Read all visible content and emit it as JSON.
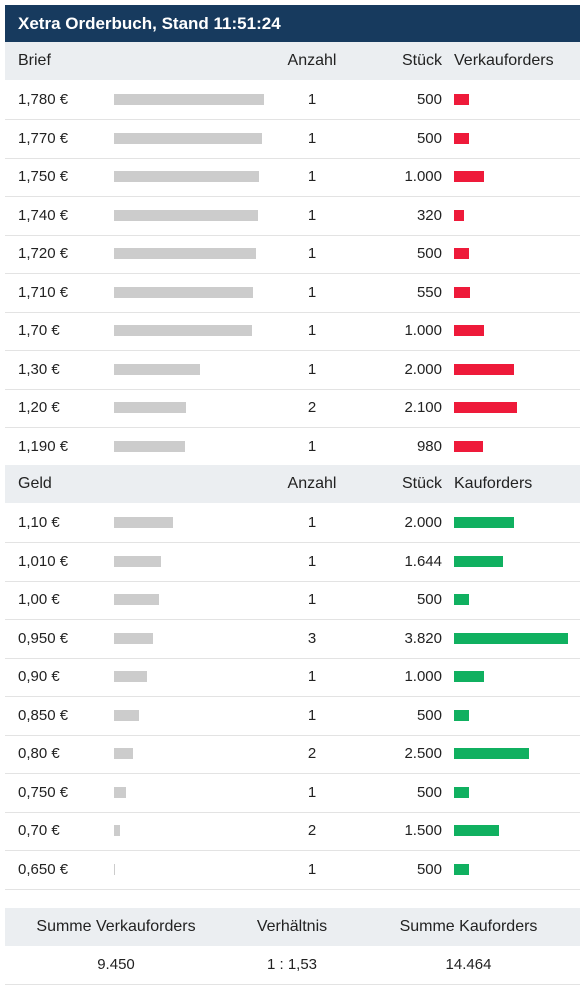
{
  "title": "Xetra Orderbuch, Stand 11:51:24",
  "colors": {
    "title_bg": "#173a5e",
    "sell": "#ee1a3a",
    "buy": "#10b060",
    "volume_bar": "#cccccc",
    "header_bg": "#ebeef1"
  },
  "ask_header": {
    "price": "Brief",
    "count": "Anzahl",
    "qty": "Stück",
    "orders": "Verkauforders"
  },
  "asks": [
    {
      "price": "1,780 €",
      "count": "1",
      "qty": "500",
      "qty_num": 500,
      "volume_share": 1.0
    },
    {
      "price": "1,770 €",
      "count": "1",
      "qty": "500",
      "qty_num": 500,
      "volume_share": 0.987
    },
    {
      "price": "1,750 €",
      "count": "1",
      "qty": "1.000",
      "qty_num": 1000,
      "volume_share": 0.967
    },
    {
      "price": "1,740 €",
      "count": "1",
      "qty": "320",
      "qty_num": 320,
      "volume_share": 0.96
    },
    {
      "price": "1,720 €",
      "count": "1",
      "qty": "500",
      "qty_num": 500,
      "volume_share": 0.947
    },
    {
      "price": "1,710 €",
      "count": "1",
      "qty": "550",
      "qty_num": 550,
      "volume_share": 0.927
    },
    {
      "price": "1,70 €",
      "count": "1",
      "qty": "1.000",
      "qty_num": 1000,
      "volume_share": 0.92
    },
    {
      "price": "1,30 €",
      "count": "1",
      "qty": "2.000",
      "qty_num": 2000,
      "volume_share": 0.573
    },
    {
      "price": "1,20 €",
      "count": "2",
      "qty": "2.100",
      "qty_num": 2100,
      "volume_share": 0.48
    },
    {
      "price": "1,190 €",
      "count": "1",
      "qty": "980",
      "qty_num": 980,
      "volume_share": 0.473
    }
  ],
  "bid_header": {
    "price": "Geld",
    "count": "Anzahl",
    "qty": "Stück",
    "orders": "Kauforders"
  },
  "bids": [
    {
      "price": "1,10 €",
      "count": "1",
      "qty": "2.000",
      "qty_num": 2000,
      "volume_share": 0.393
    },
    {
      "price": "1,010 €",
      "count": "1",
      "qty": "1.644",
      "qty_num": 1644,
      "volume_share": 0.313
    },
    {
      "price": "1,00 €",
      "count": "1",
      "qty": "500",
      "qty_num": 500,
      "volume_share": 0.3
    },
    {
      "price": "0,950 €",
      "count": "3",
      "qty": "3.820",
      "qty_num": 3820,
      "volume_share": 0.26
    },
    {
      "price": "0,90 €",
      "count": "1",
      "qty": "1.000",
      "qty_num": 1000,
      "volume_share": 0.22
    },
    {
      "price": "0,850 €",
      "count": "1",
      "qty": "500",
      "qty_num": 500,
      "volume_share": 0.167
    },
    {
      "price": "0,80 €",
      "count": "2",
      "qty": "2.500",
      "qty_num": 2500,
      "volume_share": 0.127
    },
    {
      "price": "0,750 €",
      "count": "1",
      "qty": "500",
      "qty_num": 500,
      "volume_share": 0.08
    },
    {
      "price": "0,70 €",
      "count": "2",
      "qty": "1.500",
      "qty_num": 1500,
      "volume_share": 0.04
    },
    {
      "price": "0,650 €",
      "count": "1",
      "qty": "500",
      "qty_num": 500,
      "volume_share": 0.007
    }
  ],
  "summary": {
    "sell_label": "Summe Verkauforders",
    "ratio_label": "Verhältnis",
    "buy_label": "Summe Kauforders",
    "sell_value": "9.450",
    "ratio_value": "1 : 1,53",
    "buy_value": "14.464"
  }
}
